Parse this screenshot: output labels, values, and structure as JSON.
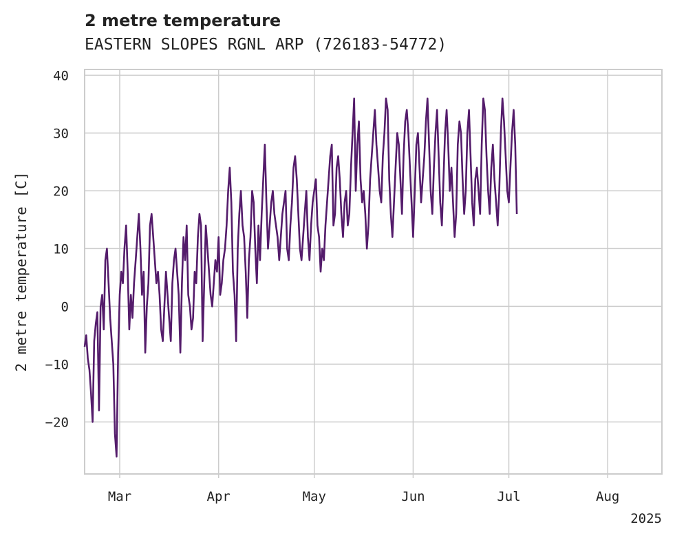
{
  "chart_data": {
    "type": "line",
    "title": "2 metre temperature",
    "subtitle": "EASTERN SLOPES RGNL ARP (726183-54772)",
    "ylabel": "2 metre temperature [C]",
    "xlabel": "",
    "ylim": [
      -29,
      41
    ],
    "yticks": [
      -20,
      -10,
      0,
      10,
      20,
      30,
      40
    ],
    "xlim": [
      "2025-02-18",
      "2025-08-18"
    ],
    "xticks": [
      {
        "label": "Mar",
        "date": "2025-03-01"
      },
      {
        "label": "Apr",
        "date": "2025-04-01"
      },
      {
        "label": "May",
        "date": "2025-05-01"
      },
      {
        "label": "Jun",
        "date": "2025-06-01"
      },
      {
        "label": "Jul",
        "date": "2025-07-01"
      },
      {
        "label": "Aug",
        "date": "2025-08-01"
      }
    ],
    "year_label": "2025",
    "grid": true,
    "line_color": "#541c6b",
    "series": [
      {
        "x_start": "2025-02-18",
        "step_hours": 12,
        "values": [
          -7,
          -5,
          -9,
          -11,
          -15,
          -20,
          -6,
          -3,
          -1,
          -18,
          0,
          2,
          -4,
          8,
          10,
          4,
          -2,
          -6,
          -10,
          -22,
          -26,
          -8,
          2,
          6,
          4,
          10,
          14,
          6,
          -4,
          2,
          -2,
          4,
          8,
          12,
          16,
          10,
          2,
          6,
          -8,
          0,
          4,
          14,
          16,
          12,
          8,
          4,
          6,
          2,
          -4,
          -6,
          0,
          6,
          2,
          -2,
          -6,
          4,
          8,
          10,
          6,
          2,
          -8,
          4,
          12,
          8,
          14,
          2,
          0,
          -4,
          -2,
          6,
          4,
          12,
          16,
          14,
          -6,
          4,
          14,
          10,
          6,
          2,
          0,
          4,
          8,
          6,
          12,
          2,
          4,
          8,
          10,
          14,
          20,
          24,
          18,
          6,
          2,
          -6,
          10,
          16,
          20,
          14,
          12,
          6,
          -2,
          8,
          12,
          20,
          18,
          10,
          4,
          14,
          8,
          16,
          22,
          28,
          18,
          10,
          14,
          18,
          20,
          16,
          14,
          12,
          8,
          12,
          16,
          18,
          20,
          10,
          8,
          14,
          18,
          24,
          26,
          22,
          16,
          10,
          8,
          12,
          16,
          20,
          12,
          8,
          14,
          18,
          20,
          22,
          14,
          12,
          6,
          10,
          8,
          14,
          18,
          22,
          26,
          28,
          14,
          16,
          24,
          26,
          22,
          16,
          12,
          18,
          20,
          14,
          16,
          24,
          30,
          36,
          20,
          28,
          32,
          22,
          18,
          20,
          16,
          10,
          14,
          22,
          26,
          30,
          34,
          28,
          24,
          20,
          18,
          26,
          30,
          36,
          34,
          22,
          16,
          12,
          18,
          24,
          30,
          28,
          22,
          16,
          26,
          32,
          34,
          30,
          24,
          18,
          12,
          20,
          28,
          30,
          24,
          18,
          22,
          26,
          32,
          36,
          28,
          20,
          16,
          24,
          30,
          34,
          26,
          18,
          14,
          22,
          30,
          34,
          28,
          20,
          24,
          18,
          12,
          16,
          28,
          32,
          30,
          22,
          16,
          20,
          30,
          34,
          26,
          18,
          14,
          22,
          24,
          20,
          16,
          28,
          36,
          34,
          26,
          20,
          16,
          24,
          28,
          22,
          18,
          14,
          20,
          30,
          36,
          32,
          26,
          20,
          18,
          24,
          30,
          34,
          28,
          16
        ]
      }
    ]
  }
}
